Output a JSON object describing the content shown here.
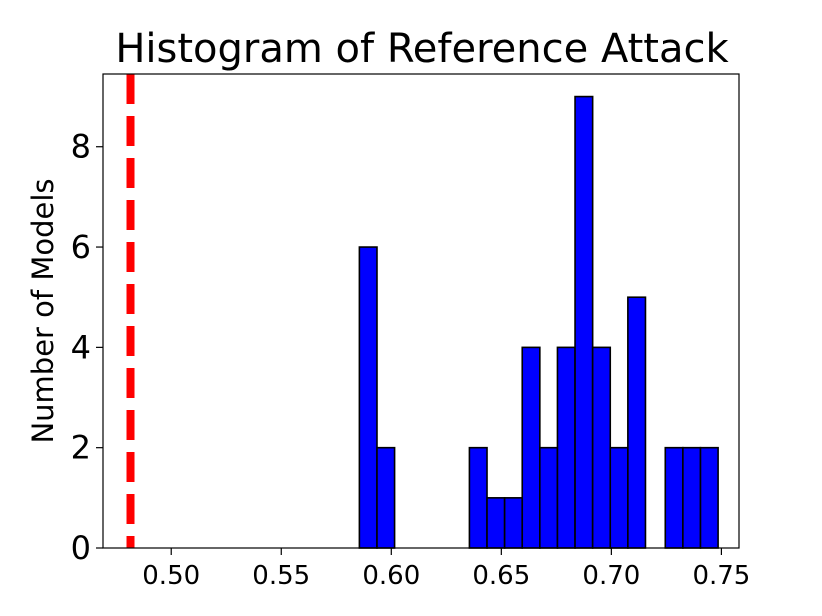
{
  "chart_data": {
    "type": "bar",
    "title": "Histogram of Reference Attack",
    "xlabel": "",
    "ylabel": "Number of Models",
    "xlim": [
      0.469,
      0.758
    ],
    "ylim": [
      0,
      9.45
    ],
    "xticks": [
      "0.50",
      "0.55",
      "0.60",
      "0.65",
      "0.70",
      "0.75"
    ],
    "xtick_values": [
      0.5,
      0.55,
      0.6,
      0.65,
      0.7,
      0.75
    ],
    "yticks": [
      "0",
      "2",
      "4",
      "6",
      "8"
    ],
    "ytick_values": [
      0,
      2,
      4,
      6,
      8
    ],
    "grid": false,
    "bar_color": "#0000ff",
    "bar_edge_color": "#000000",
    "reference_line": {
      "x": 0.4815,
      "color": "#ff0000",
      "style": "dashed"
    },
    "bins": [
      {
        "x0": 0.5855,
        "x1": 0.5935,
        "value": 6
      },
      {
        "x0": 0.5935,
        "x1": 0.6015,
        "value": 2
      },
      {
        "x0": 0.6355,
        "x1": 0.6435,
        "value": 2
      },
      {
        "x0": 0.6435,
        "x1": 0.6515,
        "value": 1
      },
      {
        "x0": 0.6515,
        "x1": 0.6595,
        "value": 1
      },
      {
        "x0": 0.6595,
        "x1": 0.6675,
        "value": 4
      },
      {
        "x0": 0.6675,
        "x1": 0.6755,
        "value": 2
      },
      {
        "x0": 0.6755,
        "x1": 0.6835,
        "value": 4
      },
      {
        "x0": 0.6835,
        "x1": 0.6915,
        "value": 9
      },
      {
        "x0": 0.6915,
        "x1": 0.6995,
        "value": 4
      },
      {
        "x0": 0.6995,
        "x1": 0.7075,
        "value": 2
      },
      {
        "x0": 0.7075,
        "x1": 0.7155,
        "value": 5
      },
      {
        "x0": 0.7245,
        "x1": 0.7325,
        "value": 2
      },
      {
        "x0": 0.7325,
        "x1": 0.7405,
        "value": 2
      },
      {
        "x0": 0.7405,
        "x1": 0.7485,
        "value": 2
      }
    ]
  }
}
